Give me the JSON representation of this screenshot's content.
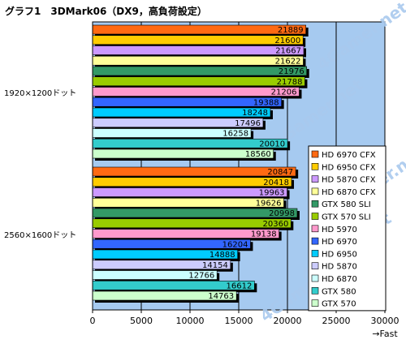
{
  "chart_data": {
    "type": "bar",
    "orientation": "horizontal",
    "title": "グラフ1　3DMark06（DX9，高負荷設定）",
    "x_unit_label": "→Fast",
    "xlim": [
      0,
      30000
    ],
    "x_ticks": [
      "0",
      "5000",
      "10000",
      "15000",
      "20000",
      "25000",
      "30000"
    ],
    "categories": [
      "1920×1200ドット",
      "2560×1600ドット"
    ],
    "series": [
      {
        "name": "HD 6970 CFX",
        "color": "#ff6a13",
        "values": [
          21889,
          20847
        ]
      },
      {
        "name": "HD 6950 CFX",
        "color": "#ffcc00",
        "values": [
          21600,
          20418
        ]
      },
      {
        "name": "HD 5870 CFX",
        "color": "#cc99ff",
        "values": [
          21667,
          19963
        ]
      },
      {
        "name": "HD 6870 CFX",
        "color": "#ffff99",
        "values": [
          21622,
          19626
        ]
      },
      {
        "name": "GTX 580 SLI",
        "color": "#339966",
        "values": [
          21976,
          20998
        ]
      },
      {
        "name": "GTX 570 SLI",
        "color": "#99cc00",
        "values": [
          21788,
          20360
        ]
      },
      {
        "name": "HD 5970",
        "color": "#ff99cc",
        "values": [
          21206,
          19138
        ]
      },
      {
        "name": "HD 6970",
        "color": "#3366ff",
        "values": [
          19388,
          16204
        ]
      },
      {
        "name": "HD 6950",
        "color": "#00ccff",
        "values": [
          18248,
          14888
        ]
      },
      {
        "name": "HD 5870",
        "color": "#ccccff",
        "values": [
          17496,
          14154
        ]
      },
      {
        "name": "HD 6870",
        "color": "#ccffff",
        "values": [
          16258,
          12766
        ]
      },
      {
        "name": "GTX 580",
        "color": "#33cccc",
        "values": [
          20010,
          16612
        ]
      },
      {
        "name": "GTX 570",
        "color": "#ccffcc",
        "values": [
          18560,
          14763
        ]
      }
    ],
    "plot_background": "#a6caf0",
    "grid": true,
    "legend_position": "right"
  },
  "watermark": "4Gamer.net"
}
